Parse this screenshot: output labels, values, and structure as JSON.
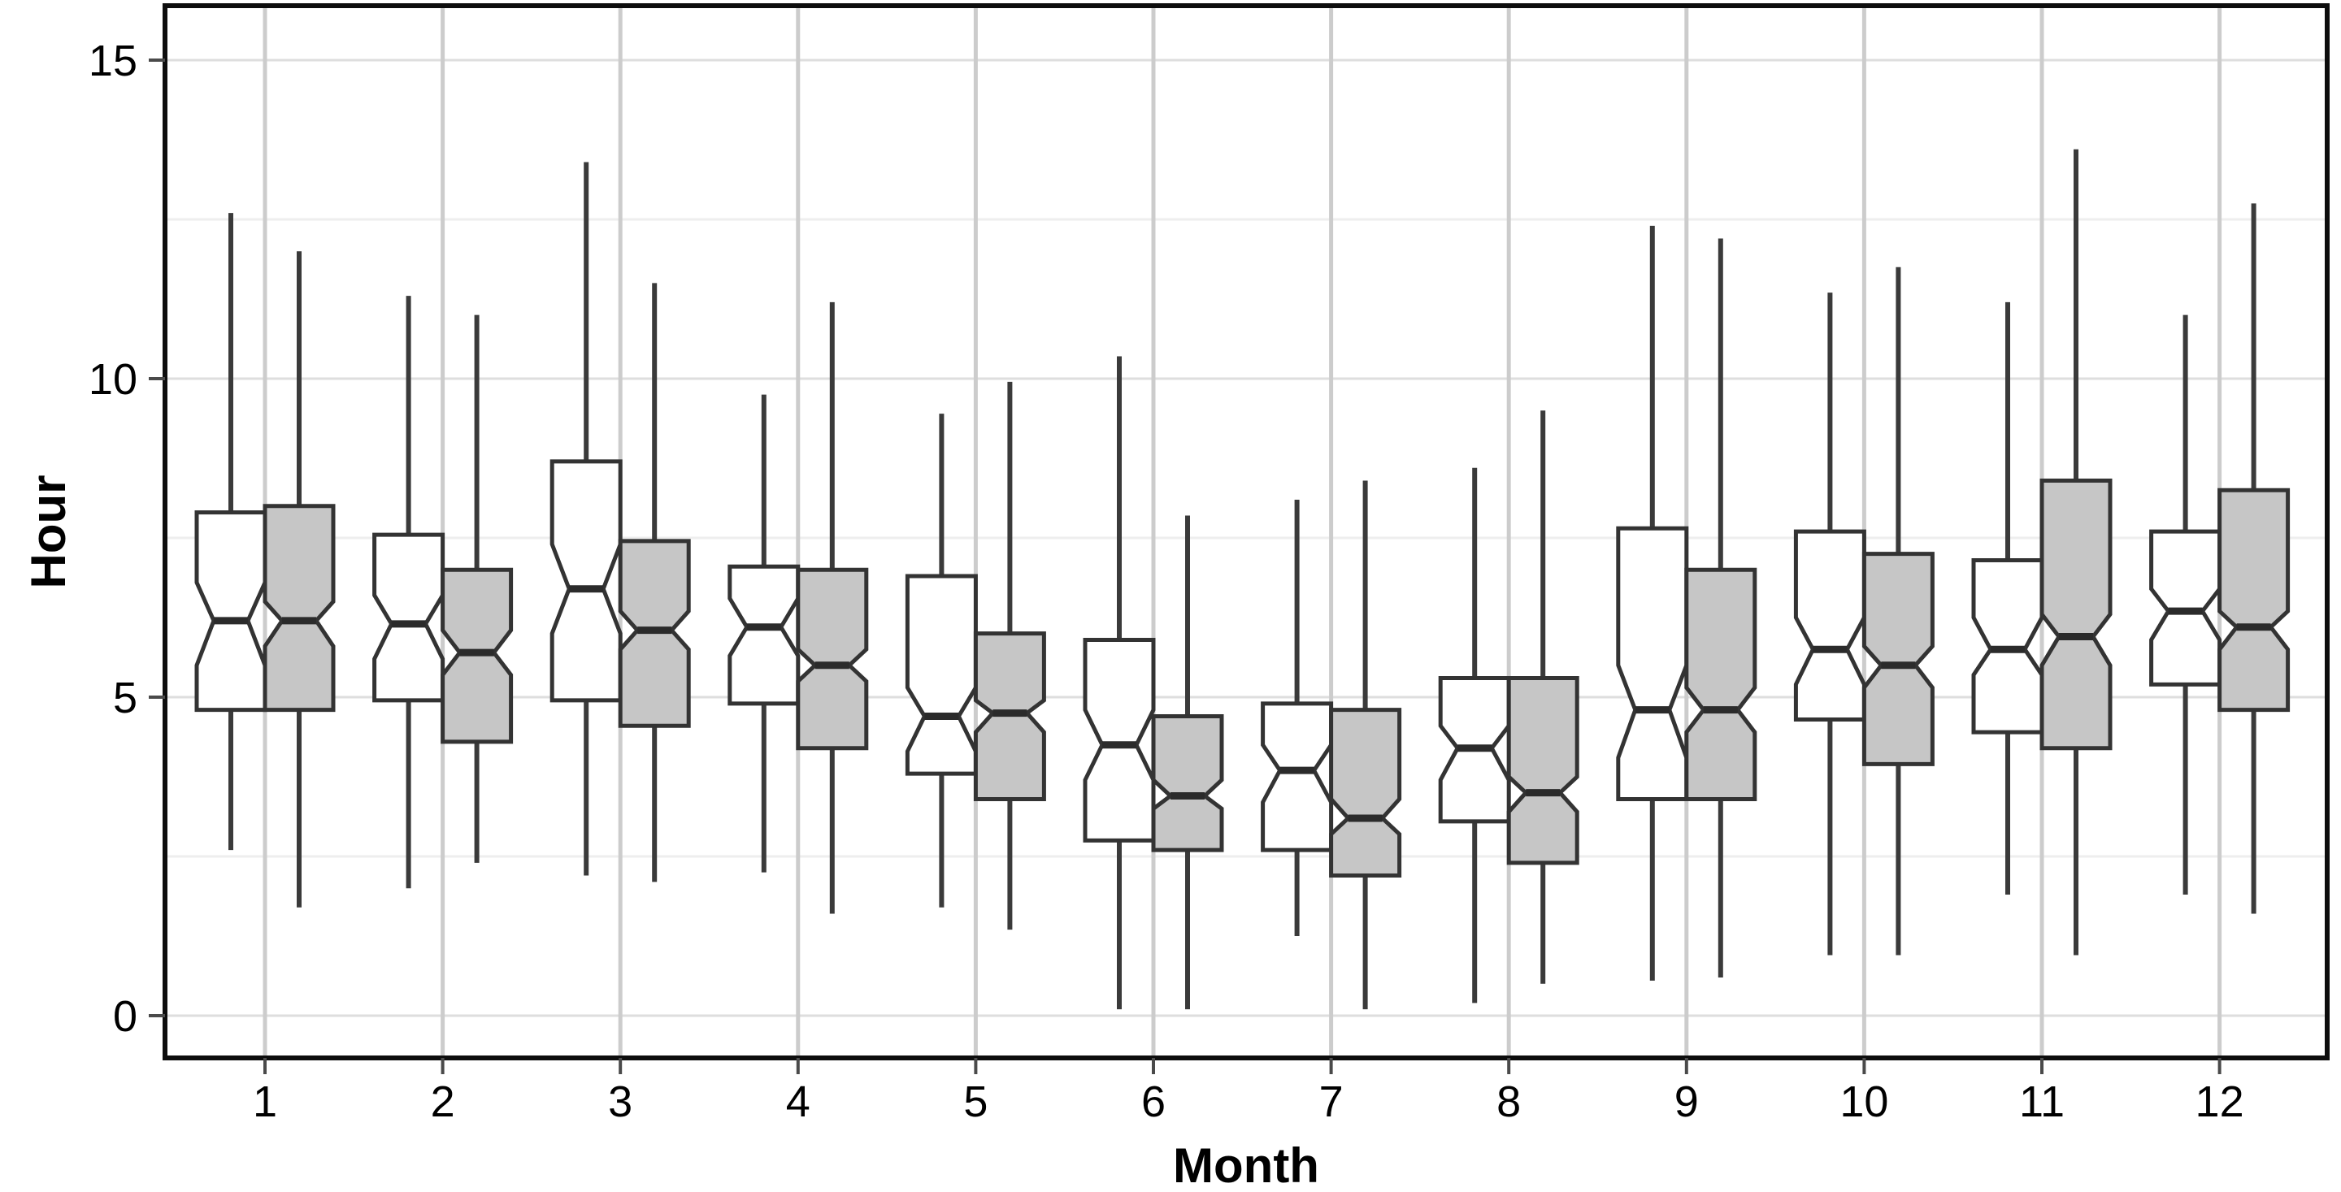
{
  "figure": {
    "title": "",
    "kind": "notched grouped boxplot"
  },
  "colors": {
    "background": "#ffffff",
    "box_fill_white": "#ffffff",
    "box_fill_grey": "#c6c6c6",
    "box_outline": "#333333",
    "median_line": "#2b2b2b",
    "whisker": "#3a3a3a",
    "grid_major_h": "#dedede",
    "grid_minor_h": "#eeeeee",
    "grid_vertical": "#cccccc",
    "panel_border": "#0d0d0d",
    "tick_mark": "#4a4a4a",
    "axis_text": "#000000"
  },
  "chart_data": {
    "type": "boxplot",
    "orientation": "vertical",
    "notched": true,
    "title": "",
    "xlabel": "Month",
    "ylabel": "Hour",
    "legend": "none",
    "grid": "major and minor horizontal, major vertical per month",
    "categories": [
      "1",
      "2",
      "3",
      "4",
      "5",
      "6",
      "7",
      "8",
      "9",
      "10",
      "11",
      "12"
    ],
    "y_axis": {
      "ticks": [
        0,
        5,
        10,
        15
      ],
      "minor_ticks": [
        2.5,
        7.5,
        12.5
      ],
      "range": [
        0,
        15
      ]
    },
    "series": [
      {
        "name": "white-boxes",
        "fill": "#ffffff",
        "boxes": [
          {
            "month": "1",
            "whisker_low": 2.6,
            "q1": 4.8,
            "notch_low": 5.5,
            "median": 6.2,
            "notch_high": 6.8,
            "q3": 7.9,
            "whisker_high": 12.6
          },
          {
            "month": "2",
            "whisker_low": 2.0,
            "q1": 4.95,
            "notch_low": 5.6,
            "median": 6.15,
            "notch_high": 6.6,
            "q3": 7.55,
            "whisker_high": 11.3
          },
          {
            "month": "3",
            "whisker_low": 2.2,
            "q1": 4.95,
            "notch_low": 6.0,
            "median": 6.7,
            "notch_high": 7.4,
            "q3": 8.7,
            "whisker_high": 13.4
          },
          {
            "month": "4",
            "whisker_low": 2.25,
            "q1": 4.9,
            "notch_low": 5.65,
            "median": 6.1,
            "notch_high": 6.55,
            "q3": 7.05,
            "whisker_high": 9.75
          },
          {
            "month": "5",
            "whisker_low": 1.7,
            "q1": 3.8,
            "notch_low": 4.15,
            "median": 4.7,
            "notch_high": 5.15,
            "q3": 6.9,
            "whisker_high": 9.45
          },
          {
            "month": "6",
            "whisker_low": 0.1,
            "q1": 2.75,
            "notch_low": 3.7,
            "median": 4.25,
            "notch_high": 4.8,
            "q3": 5.9,
            "whisker_high": 10.35
          },
          {
            "month": "7",
            "whisker_low": 1.25,
            "q1": 2.6,
            "notch_low": 3.35,
            "median": 3.85,
            "notch_high": 4.25,
            "q3": 4.9,
            "whisker_high": 8.1
          },
          {
            "month": "8",
            "whisker_low": 0.2,
            "q1": 3.05,
            "notch_low": 3.7,
            "median": 4.2,
            "notch_high": 4.55,
            "q3": 5.3,
            "whisker_high": 8.6
          },
          {
            "month": "9",
            "whisker_low": 0.55,
            "q1": 3.4,
            "notch_low": 4.05,
            "median": 4.8,
            "notch_high": 5.5,
            "q3": 7.65,
            "whisker_high": 12.4
          },
          {
            "month": "10",
            "whisker_low": 0.95,
            "q1": 4.65,
            "notch_low": 5.2,
            "median": 5.75,
            "notch_high": 6.25,
            "q3": 7.6,
            "whisker_high": 11.35
          },
          {
            "month": "11",
            "whisker_low": 1.9,
            "q1": 4.45,
            "notch_low": 5.35,
            "median": 5.75,
            "notch_high": 6.25,
            "q3": 7.15,
            "whisker_high": 11.2
          },
          {
            "month": "12",
            "whisker_low": 1.9,
            "q1": 5.2,
            "notch_low": 5.9,
            "median": 6.35,
            "notch_high": 6.7,
            "q3": 7.6,
            "whisker_high": 11.0
          }
        ]
      },
      {
        "name": "grey-boxes",
        "fill": "#c6c6c6",
        "boxes": [
          {
            "month": "1",
            "whisker_low": 1.7,
            "q1": 4.8,
            "notch_low": 5.8,
            "median": 6.2,
            "notch_high": 6.5,
            "q3": 8.0,
            "whisker_high": 12.0
          },
          {
            "month": "2",
            "whisker_low": 2.4,
            "q1": 4.3,
            "notch_low": 5.35,
            "median": 5.7,
            "notch_high": 6.05,
            "q3": 7.0,
            "whisker_high": 11.0
          },
          {
            "month": "3",
            "whisker_low": 2.1,
            "q1": 4.55,
            "notch_low": 5.75,
            "median": 6.05,
            "notch_high": 6.35,
            "q3": 7.45,
            "whisker_high": 11.5
          },
          {
            "month": "4",
            "whisker_low": 1.6,
            "q1": 4.2,
            "notch_low": 5.25,
            "median": 5.5,
            "notch_high": 5.75,
            "q3": 7.0,
            "whisker_high": 11.2
          },
          {
            "month": "5",
            "whisker_low": 1.35,
            "q1": 3.4,
            "notch_low": 4.45,
            "median": 4.75,
            "notch_high": 4.95,
            "q3": 6.0,
            "whisker_high": 9.95
          },
          {
            "month": "6",
            "whisker_low": 0.1,
            "q1": 2.6,
            "notch_low": 3.25,
            "median": 3.45,
            "notch_high": 3.7,
            "q3": 4.7,
            "whisker_high": 7.85
          },
          {
            "month": "7",
            "whisker_low": 0.1,
            "q1": 2.2,
            "notch_low": 2.85,
            "median": 3.1,
            "notch_high": 3.4,
            "q3": 4.8,
            "whisker_high": 8.4
          },
          {
            "month": "8",
            "whisker_low": 0.5,
            "q1": 2.4,
            "notch_low": 3.2,
            "median": 3.5,
            "notch_high": 3.75,
            "q3": 5.3,
            "whisker_high": 9.5
          },
          {
            "month": "9",
            "whisker_low": 0.6,
            "q1": 3.4,
            "notch_low": 4.45,
            "median": 4.8,
            "notch_high": 5.15,
            "q3": 7.0,
            "whisker_high": 12.2
          },
          {
            "month": "10",
            "whisker_low": 0.95,
            "q1": 3.95,
            "notch_low": 5.15,
            "median": 5.5,
            "notch_high": 5.8,
            "q3": 7.25,
            "whisker_high": 11.75
          },
          {
            "month": "11",
            "whisker_low": 0.95,
            "q1": 4.2,
            "notch_low": 5.5,
            "median": 5.95,
            "notch_high": 6.3,
            "q3": 8.4,
            "whisker_high": 13.6
          },
          {
            "month": "12",
            "whisker_low": 1.6,
            "q1": 4.8,
            "notch_low": 5.75,
            "median": 6.1,
            "notch_high": 6.35,
            "q3": 8.25,
            "whisker_high": 12.75
          }
        ]
      }
    ]
  }
}
